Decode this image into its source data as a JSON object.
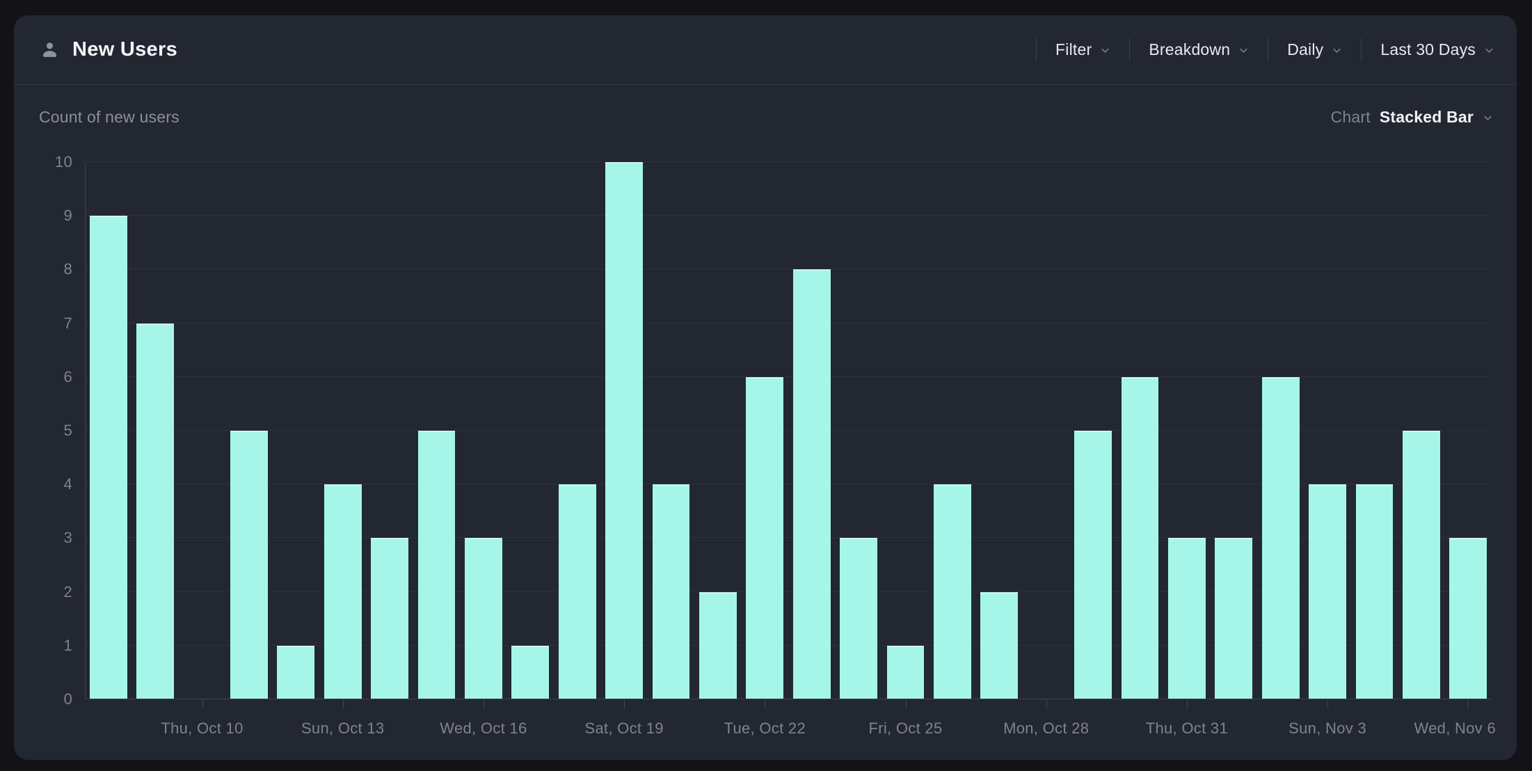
{
  "header": {
    "title": "New Users",
    "controls": [
      {
        "label": "Filter",
        "icon": "chevron-down-icon"
      },
      {
        "label": "Breakdown",
        "icon": "chevron-down-icon"
      },
      {
        "label": "Daily",
        "icon": "chevron-down-icon"
      },
      {
        "label": "Last 30 Days",
        "icon": "chevron-down-icon"
      }
    ]
  },
  "toolbar": {
    "metric_label": "Count of new users",
    "chart_selector": {
      "label": "Chart",
      "value": "Stacked Bar",
      "icon": "chevron-down-icon"
    }
  },
  "colors": {
    "page_bg": "#121217",
    "card_bg": "#232732",
    "bar": "#a5f6e8",
    "grid": "#2e323c",
    "axis": "#3f434e",
    "text_primary": "#f5f6f8",
    "text_muted": "#7e838e",
    "divider": "#3c404a"
  },
  "chart_data": {
    "type": "bar",
    "title": "Count of new users",
    "xlabel": "",
    "ylabel": "",
    "n_bars": 30,
    "values": [
      9,
      7,
      0,
      5,
      1,
      4,
      3,
      5,
      3,
      1,
      4,
      10,
      4,
      2,
      6,
      8,
      3,
      1,
      4,
      2,
      0,
      5,
      6,
      3,
      3,
      6,
      4,
      4,
      5,
      3
    ],
    "x_tick_indices": [
      2,
      5,
      8,
      11,
      14,
      17,
      20,
      23,
      26,
      29
    ],
    "x_tick_labels": [
      "Thu, Oct 10",
      "Sun, Oct 13",
      "Wed, Oct 16",
      "Sat, Oct 19",
      "Tue, Oct 22",
      "Fri, Oct 25",
      "Mon, Oct 28",
      "Thu, Oct 31",
      "Sun, Nov 3",
      "Wed, Nov 6"
    ],
    "ylim": [
      0,
      10
    ],
    "y_ticks": [
      0,
      1,
      2,
      3,
      4,
      5,
      6,
      7,
      8,
      9,
      10
    ],
    "grid": "horizontal",
    "legend": "none",
    "bar_color": "#a5f6e8"
  }
}
